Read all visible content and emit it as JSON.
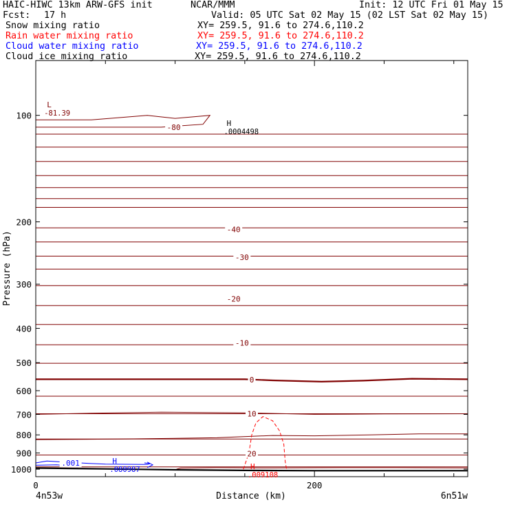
{
  "header": {
    "title_left": "HAIC-HIWC 13km ARW-GFS init",
    "center": "NCAR/MMM",
    "init": "Init: 12 UTC Fri 01 May 15",
    "fcst_label": "Fcst:",
    "fcst_value": "17 h",
    "valid": "Valid: 05 UTC Sat 02 May 15 (02 LST Sat 02 May 15)",
    "fields": [
      {
        "name": "Snow mixing ratio",
        "xy": "XY= 259.5, 91.6 to 274.6,110.2",
        "color": "#000000"
      },
      {
        "name": "Rain water mixing ratio",
        "xy": "XY= 259.5, 91.6 to 274.6,110.2",
        "color": "#ff0000"
      },
      {
        "name": "Cloud water mixing ratio",
        "xy": "XY= 259.5, 91.6 to 274.6,110.2",
        "color": "#0000ff"
      },
      {
        "name": "Cloud ice mixing ratio",
        "xy": "XY= 259.5, 91.6 to 274.6,110.2",
        "color": "#000000"
      }
    ]
  },
  "chart_data": {
    "type": "cross-section contour",
    "ylabel": "Pressure (hPa)",
    "xlabel": "Distance (km)",
    "x_start_label": "4n53w",
    "x_end_label": "6n51w",
    "xlim": [
      0,
      310
    ],
    "ylim": [
      1050,
      70
    ],
    "y_axis": "log-pressure",
    "y_ticks": [
      100,
      200,
      300,
      400,
      500,
      600,
      700,
      800,
      900,
      1000
    ],
    "x_ticks": [
      0,
      200
    ],
    "x_minor_ticks": [
      50,
      100,
      150,
      250,
      300
    ],
    "colors": {
      "temperature": "#800000",
      "rain": "#ff0000",
      "cloud_water": "#0000ff",
      "ground": "#000000"
    },
    "temperature_labels": [
      {
        "text": "-80",
        "x": 99,
        "p": 108
      },
      {
        "text": "-40",
        "x": 142,
        "p": 210
      },
      {
        "text": "-30",
        "x": 148,
        "p": 252
      },
      {
        "text": "-20",
        "x": 142,
        "p": 330
      },
      {
        "text": "-10",
        "x": 148,
        "p": 440
      },
      {
        "text": "0",
        "x": 155,
        "p": 558
      },
      {
        "text": "10",
        "x": 155,
        "p": 697
      },
      {
        "text": "20",
        "x": 155,
        "p": 903
      }
    ],
    "extrema": [
      {
        "symbol": "L",
        "label": "-81.39",
        "x": 8,
        "p": 95,
        "color": "#800000"
      },
      {
        "symbol": "H",
        "label": ".0004498",
        "x": 137,
        "p": 107,
        "color": "#000000"
      },
      {
        "symbol": "H",
        "label": ".080987",
        "x": 55,
        "p": 965,
        "color": "#0000ff"
      },
      {
        "symbol": "H",
        "label": ".009108",
        "x": 154,
        "p": 1000,
        "color": "#ff0000"
      }
    ],
    "cloud_water_labels": [
      {
        "text": ".001",
        "x": 25,
        "p": 960
      }
    ],
    "isotherm_levels_hpa": [
      113,
      123,
      135,
      148,
      160,
      172,
      182,
      208,
      228,
      250,
      272,
      303,
      345,
      390,
      445,
      502,
      622,
      697,
      822,
      912,
      985
    ],
    "zero_isotherm": [
      [
        0,
        557
      ],
      [
        100,
        557
      ],
      [
        150,
        557
      ],
      [
        170,
        561
      ],
      [
        205,
        566
      ],
      [
        235,
        562
      ],
      [
        270,
        555
      ],
      [
        310,
        557
      ]
    ],
    "isotherm_800": [
      [
        0,
        825
      ],
      [
        60,
        822
      ],
      [
        130,
        815
      ],
      [
        170,
        803
      ],
      [
        200,
        805
      ],
      [
        240,
        800
      ],
      [
        275,
        795
      ],
      [
        310,
        795
      ]
    ],
    "isotherm_700": [
      [
        0,
        700
      ],
      [
        40,
        695
      ],
      [
        90,
        690
      ],
      [
        150,
        693
      ],
      [
        200,
        700
      ],
      [
        250,
        698
      ],
      [
        310,
        697
      ]
    ],
    "rain_contour": [
      [
        149,
        1000
      ],
      [
        153,
        900
      ],
      [
        155,
        800
      ],
      [
        158,
        740
      ],
      [
        163,
        710
      ],
      [
        170,
        730
      ],
      [
        175,
        780
      ],
      [
        178,
        850
      ],
      [
        179,
        950
      ],
      [
        180,
        1000
      ]
    ],
    "cloud_water_contour": [
      [
        0,
        960
      ],
      [
        8,
        948
      ],
      [
        20,
        955
      ],
      [
        35,
        962
      ],
      [
        50,
        968
      ],
      [
        80,
        970
      ],
      [
        82,
        965
      ],
      [
        78,
        960
      ]
    ],
    "cloud_water_contour2": [
      [
        0,
        975
      ],
      [
        15,
        972
      ],
      [
        25,
        980
      ],
      [
        30,
        985
      ]
    ],
    "minus80_contour": [
      [
        0,
        103
      ],
      [
        40,
        103
      ],
      [
        80,
        100
      ],
      [
        100,
        102
      ],
      [
        125,
        100
      ],
      [
        120,
        106
      ],
      [
        90,
        108
      ],
      [
        40,
        108
      ],
      [
        0,
        108
      ]
    ],
    "ground_line": [
      [
        0,
        993
      ],
      [
        50,
        998
      ],
      [
        100,
        1004
      ],
      [
        150,
        1008
      ],
      [
        200,
        1010
      ],
      [
        250,
        1010
      ],
      [
        310,
        1010
      ]
    ],
    "boundary_isotherm": [
      [
        101,
        1000
      ],
      [
        104,
        993
      ],
      [
        130,
        990
      ],
      [
        170,
        992
      ],
      [
        220,
        990
      ],
      [
        260,
        990
      ],
      [
        310,
        992
      ]
    ]
  }
}
